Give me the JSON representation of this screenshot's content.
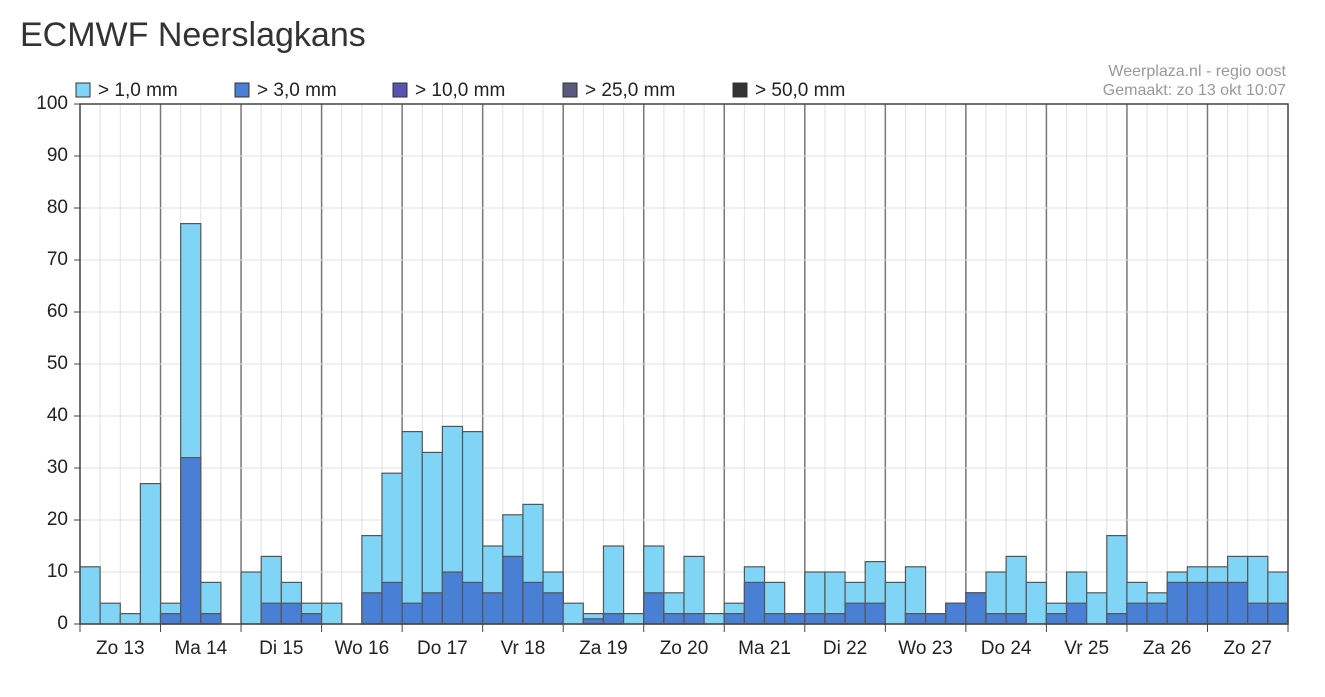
{
  "chart_data": {
    "type": "bar",
    "title": "ECMWF Neerslagkans",
    "annotations": [
      "Weerplaza.nl - regio oost",
      "Gemaakt: zo 13 okt 10:07"
    ],
    "categories": [
      null,
      "Zo 13",
      null,
      null,
      null,
      "Ma 14",
      null,
      null,
      null,
      "Di 15",
      null,
      null,
      null,
      "Wo 16",
      null,
      null,
      null,
      "Do 17",
      null,
      null,
      null,
      "Vr 18",
      null,
      null,
      null,
      "Za 19",
      null,
      null,
      null,
      "Zo 20",
      null,
      null,
      null,
      "Ma 21",
      null,
      null,
      null,
      "Di 22",
      null,
      null,
      null,
      "Wo 23",
      null,
      null,
      null,
      "Do 24",
      null,
      null,
      null,
      "Vr 25",
      null,
      null,
      null,
      "Za 26",
      null,
      null,
      null,
      "Zo 27",
      null,
      null
    ],
    "series": [
      {
        "name": "> 1,0 mm",
        "color": "#80d4f6",
        "values": [
          11,
          4,
          2,
          27,
          4,
          77,
          8,
          0,
          10,
          13,
          8,
          4,
          4,
          0,
          17,
          29,
          37,
          33,
          38,
          37,
          15,
          21,
          23,
          10,
          4,
          2,
          15,
          2,
          15,
          6,
          13,
          2,
          4,
          11,
          8,
          2,
          10,
          10,
          8,
          12,
          8,
          11,
          2,
          4,
          6,
          10,
          13,
          8,
          4,
          10,
          6,
          17,
          8,
          6,
          10,
          11,
          11,
          13,
          13,
          10
        ]
      },
      {
        "name": "> 3,0 mm",
        "color": "#4a7fd6",
        "values": [
          0,
          0,
          0,
          0,
          2,
          32,
          2,
          0,
          0,
          4,
          4,
          2,
          0,
          0,
          6,
          8,
          4,
          6,
          10,
          8,
          6,
          13,
          8,
          6,
          0,
          1,
          2,
          0,
          6,
          2,
          2,
          0,
          2,
          8,
          2,
          2,
          2,
          2,
          4,
          4,
          0,
          2,
          2,
          4,
          6,
          2,
          2,
          0,
          2,
          4,
          0,
          2,
          4,
          4,
          8,
          8,
          8,
          8,
          4,
          4
        ]
      },
      {
        "name": "> 10,0 mm",
        "color": "#5656b0",
        "values": [
          0,
          0,
          0,
          0,
          0,
          0,
          0,
          0,
          0,
          0,
          0,
          0,
          0,
          0,
          0,
          0,
          0,
          0,
          0,
          0,
          0,
          0,
          0,
          0,
          0,
          0,
          0,
          0,
          0,
          0,
          0,
          0,
          0,
          0,
          0,
          0,
          0,
          0,
          0,
          0,
          0,
          0,
          0,
          0,
          0,
          0,
          0,
          0,
          0,
          0,
          0,
          0,
          0,
          0,
          0,
          0,
          0,
          0,
          0,
          0
        ]
      },
      {
        "name": "> 25,0 mm",
        "color": "#5a5a80",
        "values": [
          0,
          0,
          0,
          0,
          0,
          0,
          0,
          0,
          0,
          0,
          0,
          0,
          0,
          0,
          0,
          0,
          0,
          0,
          0,
          0,
          0,
          0,
          0,
          0,
          0,
          0,
          0,
          0,
          0,
          0,
          0,
          0,
          0,
          0,
          0,
          0,
          0,
          0,
          0,
          0,
          0,
          0,
          0,
          0,
          0,
          0,
          0,
          0,
          0,
          0,
          0,
          0,
          0,
          0,
          0,
          0,
          0,
          0,
          0,
          0
        ]
      },
      {
        "name": "> 50,0 mm",
        "color": "#333333",
        "values": [
          0,
          0,
          0,
          0,
          0,
          0,
          0,
          0,
          0,
          0,
          0,
          0,
          0,
          0,
          0,
          0,
          0,
          0,
          0,
          0,
          0,
          0,
          0,
          0,
          0,
          0,
          0,
          0,
          0,
          0,
          0,
          0,
          0,
          0,
          0,
          0,
          0,
          0,
          0,
          0,
          0,
          0,
          0,
          0,
          0,
          0,
          0,
          0,
          0,
          0,
          0,
          0,
          0,
          0,
          0,
          0,
          0,
          0,
          0,
          0
        ]
      }
    ],
    "ylim": [
      0,
      100
    ],
    "yticks": [
      0,
      10,
      20,
      30,
      40,
      50,
      60,
      70,
      80,
      90,
      100
    ],
    "grid": true
  }
}
